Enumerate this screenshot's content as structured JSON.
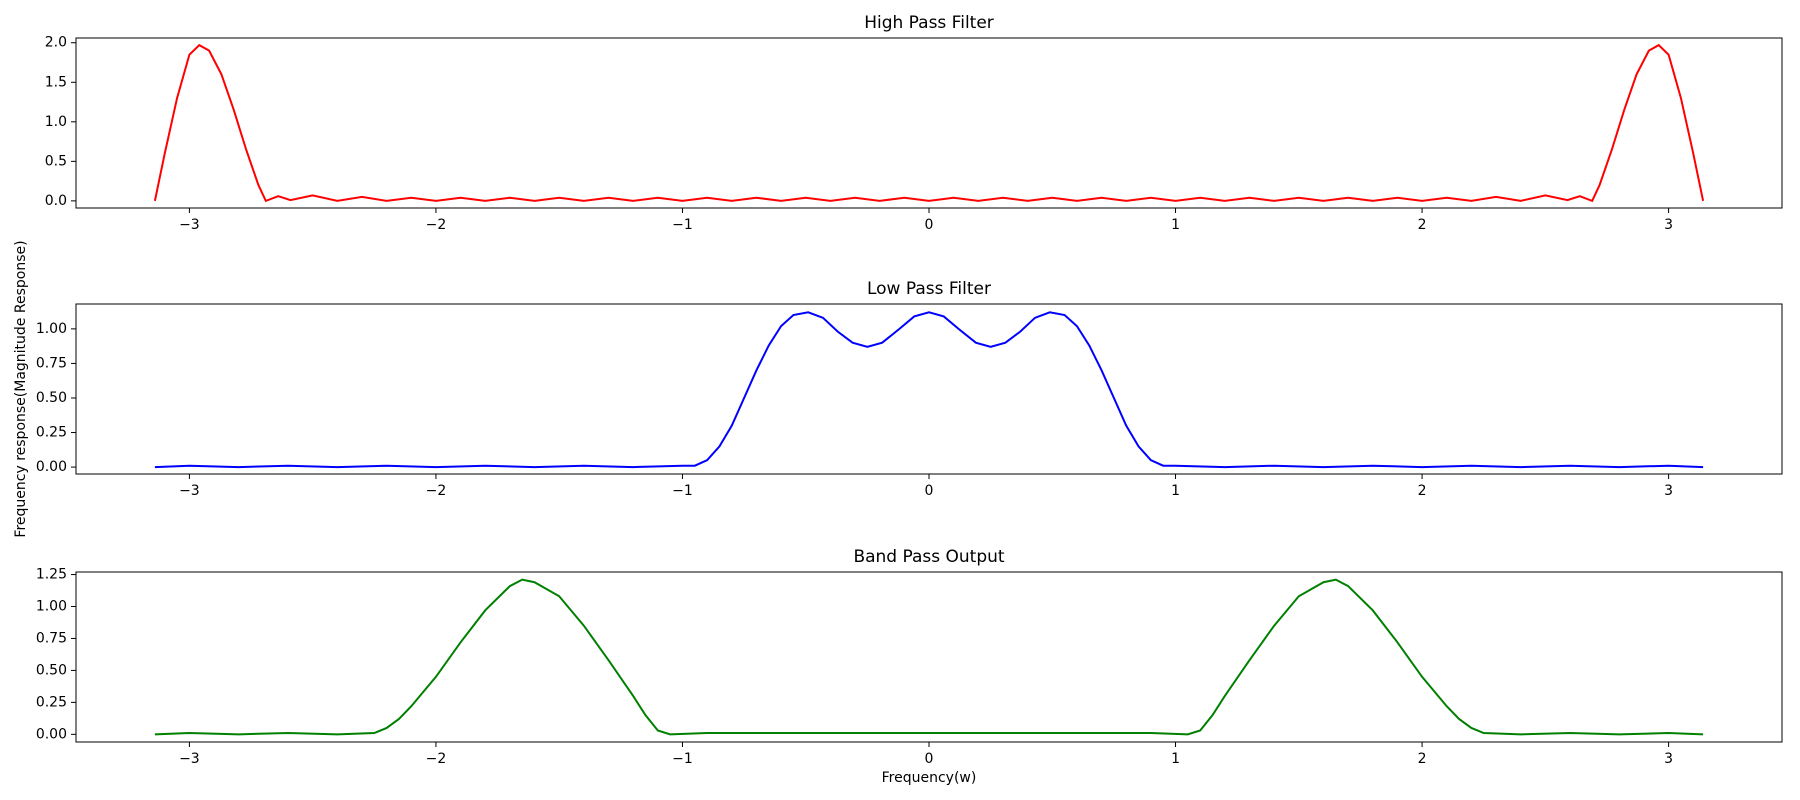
{
  "chart_data": [
    {
      "type": "line",
      "title": "High Pass Filter",
      "color": "#ff0000",
      "x": [
        -3.14,
        -3.1,
        -3.05,
        -3.0,
        -2.96,
        -2.92,
        -2.87,
        -2.82,
        -2.77,
        -2.72,
        -2.69,
        -2.64,
        -2.59,
        -2.5,
        -2.4,
        -2.3,
        -2.2,
        -2.1,
        -2.0,
        -1.9,
        -1.8,
        -1.7,
        -1.6,
        -1.5,
        -1.4,
        -1.3,
        -1.2,
        -1.1,
        -1.0,
        -0.9,
        -0.8,
        -0.7,
        -0.6,
        -0.5,
        -0.4,
        -0.3,
        -0.2,
        -0.1,
        0,
        0.1,
        0.2,
        0.3,
        0.4,
        0.5,
        0.6,
        0.7,
        0.8,
        0.9,
        1.0,
        1.1,
        1.2,
        1.3,
        1.4,
        1.5,
        1.6,
        1.7,
        1.8,
        1.9,
        2.0,
        2.1,
        2.2,
        2.3,
        2.4,
        2.5,
        2.59,
        2.64,
        2.69,
        2.72,
        2.77,
        2.82,
        2.87,
        2.92,
        2.96,
        3.0,
        3.05,
        3.1,
        3.14
      ],
      "values": [
        0,
        0.6,
        1.3,
        1.85,
        1.97,
        1.9,
        1.6,
        1.15,
        0.65,
        0.2,
        0,
        0.06,
        0.01,
        0.07,
        0,
        0.05,
        0,
        0.04,
        0,
        0.04,
        0,
        0.04,
        0,
        0.04,
        0,
        0.04,
        0,
        0.04,
        0,
        0.04,
        0,
        0.04,
        0,
        0.04,
        0,
        0.04,
        0,
        0.04,
        0,
        0.04,
        0,
        0.04,
        0,
        0.04,
        0,
        0.04,
        0,
        0.04,
        0,
        0.04,
        0,
        0.04,
        0,
        0.04,
        0,
        0.04,
        0,
        0.04,
        0,
        0.04,
        0,
        0.05,
        0,
        0.07,
        0.01,
        0.06,
        0,
        0.2,
        0.65,
        1.15,
        1.6,
        1.9,
        1.97,
        1.85,
        1.3,
        0.6,
        0
      ],
      "xlim": [
        -3.46,
        3.46
      ],
      "xticks": [
        {
          "value": -3,
          "label": "−3"
        },
        {
          "value": -2,
          "label": "−2"
        },
        {
          "value": -1,
          "label": "−1"
        },
        0,
        1,
        2,
        3
      ],
      "ylim": [
        -0.09,
        2.06
      ],
      "yticks": [
        {
          "value": 0,
          "label": "0.0"
        },
        {
          "value": 0.5,
          "label": "0.5"
        },
        {
          "value": 1,
          "label": "1.0"
        },
        {
          "value": 1.5,
          "label": "1.5"
        },
        {
          "value": 2,
          "label": "2.0"
        }
      ]
    },
    {
      "type": "line",
      "title": "Low Pass Filter",
      "color": "#0000ff",
      "ylabel": "Frequency response(Magnitude Response)",
      "x": [
        -3.14,
        -3.0,
        -2.8,
        -2.6,
        -2.4,
        -2.2,
        -2.0,
        -1.8,
        -1.6,
        -1.4,
        -1.2,
        -1.0,
        -0.95,
        -0.9,
        -0.85,
        -0.8,
        -0.75,
        -0.7,
        -0.65,
        -0.6,
        -0.55,
        -0.49,
        -0.43,
        -0.37,
        -0.31,
        -0.25,
        -0.19,
        -0.12,
        -0.06,
        0,
        0.06,
        0.12,
        0.19,
        0.25,
        0.31,
        0.37,
        0.43,
        0.49,
        0.55,
        0.6,
        0.65,
        0.7,
        0.75,
        0.8,
        0.85,
        0.9,
        0.95,
        1.0,
        1.2,
        1.4,
        1.6,
        1.8,
        2.0,
        2.2,
        2.4,
        2.6,
        2.8,
        3.0,
        3.14
      ],
      "values": [
        0,
        0.01,
        0,
        0.01,
        0,
        0.01,
        0,
        0.01,
        0,
        0.01,
        0,
        0.01,
        0.01,
        0.05,
        0.15,
        0.3,
        0.5,
        0.7,
        0.88,
        1.02,
        1.1,
        1.12,
        1.08,
        0.98,
        0.9,
        0.87,
        0.9,
        1.0,
        1.09,
        1.12,
        1.09,
        1.0,
        0.9,
        0.87,
        0.9,
        0.98,
        1.08,
        1.12,
        1.1,
        1.02,
        0.88,
        0.7,
        0.5,
        0.3,
        0.15,
        0.05,
        0.01,
        0.01,
        0,
        0.01,
        0,
        0.01,
        0,
        0.01,
        0,
        0.01,
        0,
        0.01,
        0
      ],
      "xlim": [
        -3.46,
        3.46
      ],
      "xticks": [
        {
          "value": -3,
          "label": "−3"
        },
        {
          "value": -2,
          "label": "−2"
        },
        {
          "value": -1,
          "label": "−1"
        },
        0,
        1,
        2,
        3
      ],
      "ylim": [
        -0.05,
        1.18
      ],
      "yticks": [
        {
          "value": 0,
          "label": "0.00"
        },
        {
          "value": 0.25,
          "label": "0.25"
        },
        {
          "value": 0.5,
          "label": "0.50"
        },
        {
          "value": 0.75,
          "label": "0.75"
        },
        {
          "value": 1,
          "label": "1.00"
        }
      ]
    },
    {
      "type": "line",
      "title": "Band Pass Output",
      "color": "#008000",
      "xlabel": "Frequency(w)",
      "x": [
        -3.14,
        -3.0,
        -2.8,
        -2.6,
        -2.4,
        -2.25,
        -2.2,
        -2.15,
        -2.1,
        -2.0,
        -1.9,
        -1.8,
        -1.7,
        -1.65,
        -1.6,
        -1.5,
        -1.4,
        -1.3,
        -1.2,
        -1.15,
        -1.1,
        -1.05,
        -0.9,
        -0.7,
        -0.5,
        -0.3,
        -0.1,
        0.1,
        0.3,
        0.5,
        0.7,
        0.9,
        1.05,
        1.1,
        1.15,
        1.2,
        1.3,
        1.4,
        1.5,
        1.6,
        1.65,
        1.7,
        1.8,
        1.9,
        2.0,
        2.1,
        2.15,
        2.2,
        2.25,
        2.4,
        2.6,
        2.8,
        3.0,
        3.14
      ],
      "values": [
        0,
        0.01,
        0,
        0.01,
        0,
        0.01,
        0.05,
        0.12,
        0.22,
        0.45,
        0.72,
        0.97,
        1.16,
        1.21,
        1.19,
        1.08,
        0.85,
        0.58,
        0.3,
        0.15,
        0.03,
        0,
        0.01,
        0.01,
        0.01,
        0.01,
        0.01,
        0.01,
        0.01,
        0.01,
        0.01,
        0.01,
        0,
        0.03,
        0.15,
        0.3,
        0.58,
        0.85,
        1.08,
        1.19,
        1.21,
        1.16,
        0.97,
        0.72,
        0.45,
        0.22,
        0.12,
        0.05,
        0.01,
        0,
        0.01,
        0,
        0.01,
        0
      ],
      "xlim": [
        -3.46,
        3.46
      ],
      "xticks": [
        {
          "value": -3,
          "label": "−3"
        },
        {
          "value": -2,
          "label": "−2"
        },
        {
          "value": -1,
          "label": "−1"
        },
        0,
        1,
        2,
        3
      ],
      "ylim": [
        -0.06,
        1.27
      ],
      "yticks": [
        {
          "value": 0,
          "label": "0.00"
        },
        {
          "value": 0.25,
          "label": "0.25"
        },
        {
          "value": 0.5,
          "label": "0.50"
        },
        {
          "value": 0.75,
          "label": "0.75"
        },
        {
          "value": 1,
          "label": "1.00"
        },
        {
          "value": 1.25,
          "label": "1.25"
        }
      ]
    }
  ]
}
